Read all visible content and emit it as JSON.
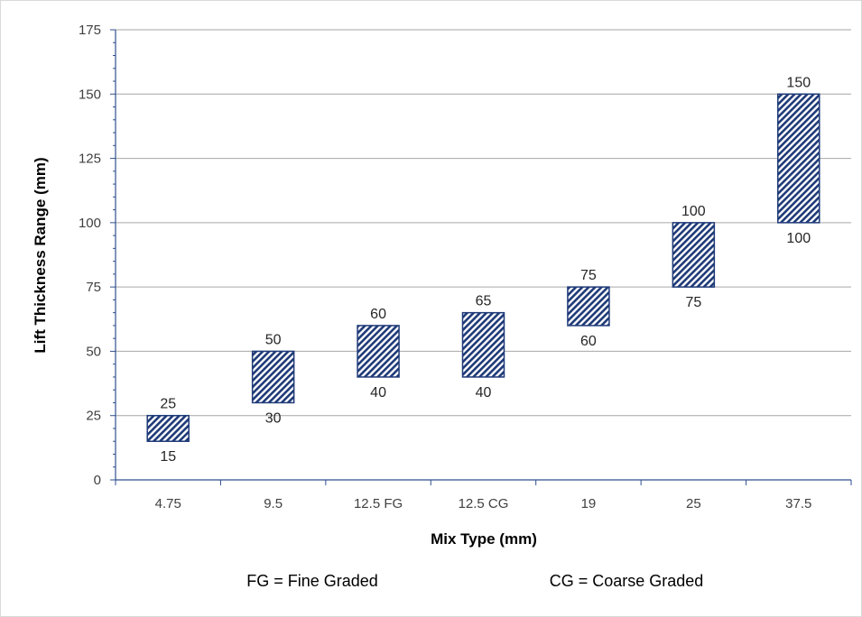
{
  "chart_data": {
    "type": "bar",
    "subtype": "floating-range",
    "categories": [
      "4.75",
      "9.5",
      "12.5 FG",
      "12.5 CG",
      "19",
      "25",
      "37.5"
    ],
    "series": [
      {
        "low": [
          15,
          30,
          40,
          40,
          60,
          75,
          100
        ],
        "high": [
          25,
          50,
          60,
          65,
          75,
          100,
          150
        ]
      }
    ],
    "xlabel": "Mix Type (mm)",
    "ylabel": "Lift Thickness Range (mm)",
    "ylim": [
      0,
      175
    ],
    "yticks": [
      0,
      25,
      50,
      75,
      100,
      125,
      150,
      175
    ],
    "grid": true,
    "bar_fill": "diagonal hatch",
    "bar_color": "#1f3a78",
    "notes": [
      "FG = Fine Graded",
      "CG = Coarse Graded"
    ]
  }
}
